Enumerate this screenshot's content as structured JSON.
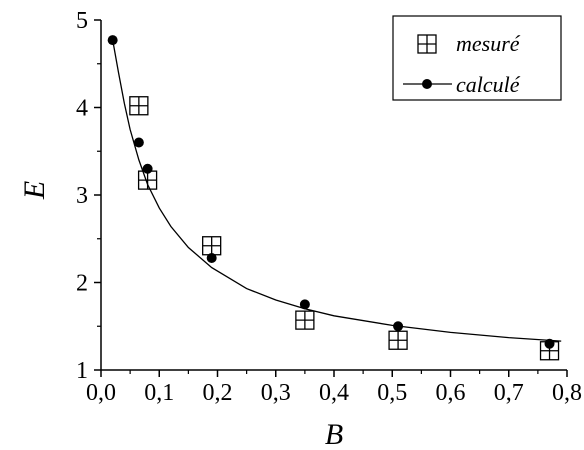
{
  "chart_data": {
    "type": "scatter",
    "xlabel": "B",
    "ylabel": "E",
    "xlim": [
      0.0,
      0.8
    ],
    "ylim": [
      1,
      5
    ],
    "x_ticks": [
      "0,0",
      "0,1",
      "0,2",
      "0,3",
      "0,4",
      "0,5",
      "0,6",
      "0,7",
      "0,8"
    ],
    "y_ticks": [
      "1",
      "2",
      "3",
      "4",
      "5"
    ],
    "grid": false,
    "legend_position": "top-right",
    "series": [
      {
        "name": "mesuré",
        "marker": "square-plus",
        "color": "#000000",
        "x": [
          0.065,
          0.08,
          0.19,
          0.35,
          0.51,
          0.77
        ],
        "y": [
          4.02,
          3.17,
          2.42,
          1.57,
          1.34,
          1.22
        ]
      },
      {
        "name": "calculé",
        "marker": "filled-circle",
        "color": "#000000",
        "x": [
          0.02,
          0.065,
          0.08,
          0.19,
          0.35,
          0.51,
          0.77
        ],
        "y": [
          4.77,
          3.6,
          3.3,
          2.28,
          1.75,
          1.5,
          1.3
        ]
      }
    ],
    "fitted_curve": {
      "x": [
        0.02,
        0.03,
        0.04,
        0.05,
        0.065,
        0.08,
        0.1,
        0.12,
        0.15,
        0.19,
        0.25,
        0.3,
        0.35,
        0.4,
        0.5,
        0.6,
        0.7,
        0.79
      ],
      "y": [
        4.77,
        4.4,
        4.05,
        3.75,
        3.4,
        3.12,
        2.85,
        2.64,
        2.4,
        2.17,
        1.93,
        1.8,
        1.7,
        1.62,
        1.51,
        1.43,
        1.37,
        1.33
      ]
    }
  }
}
